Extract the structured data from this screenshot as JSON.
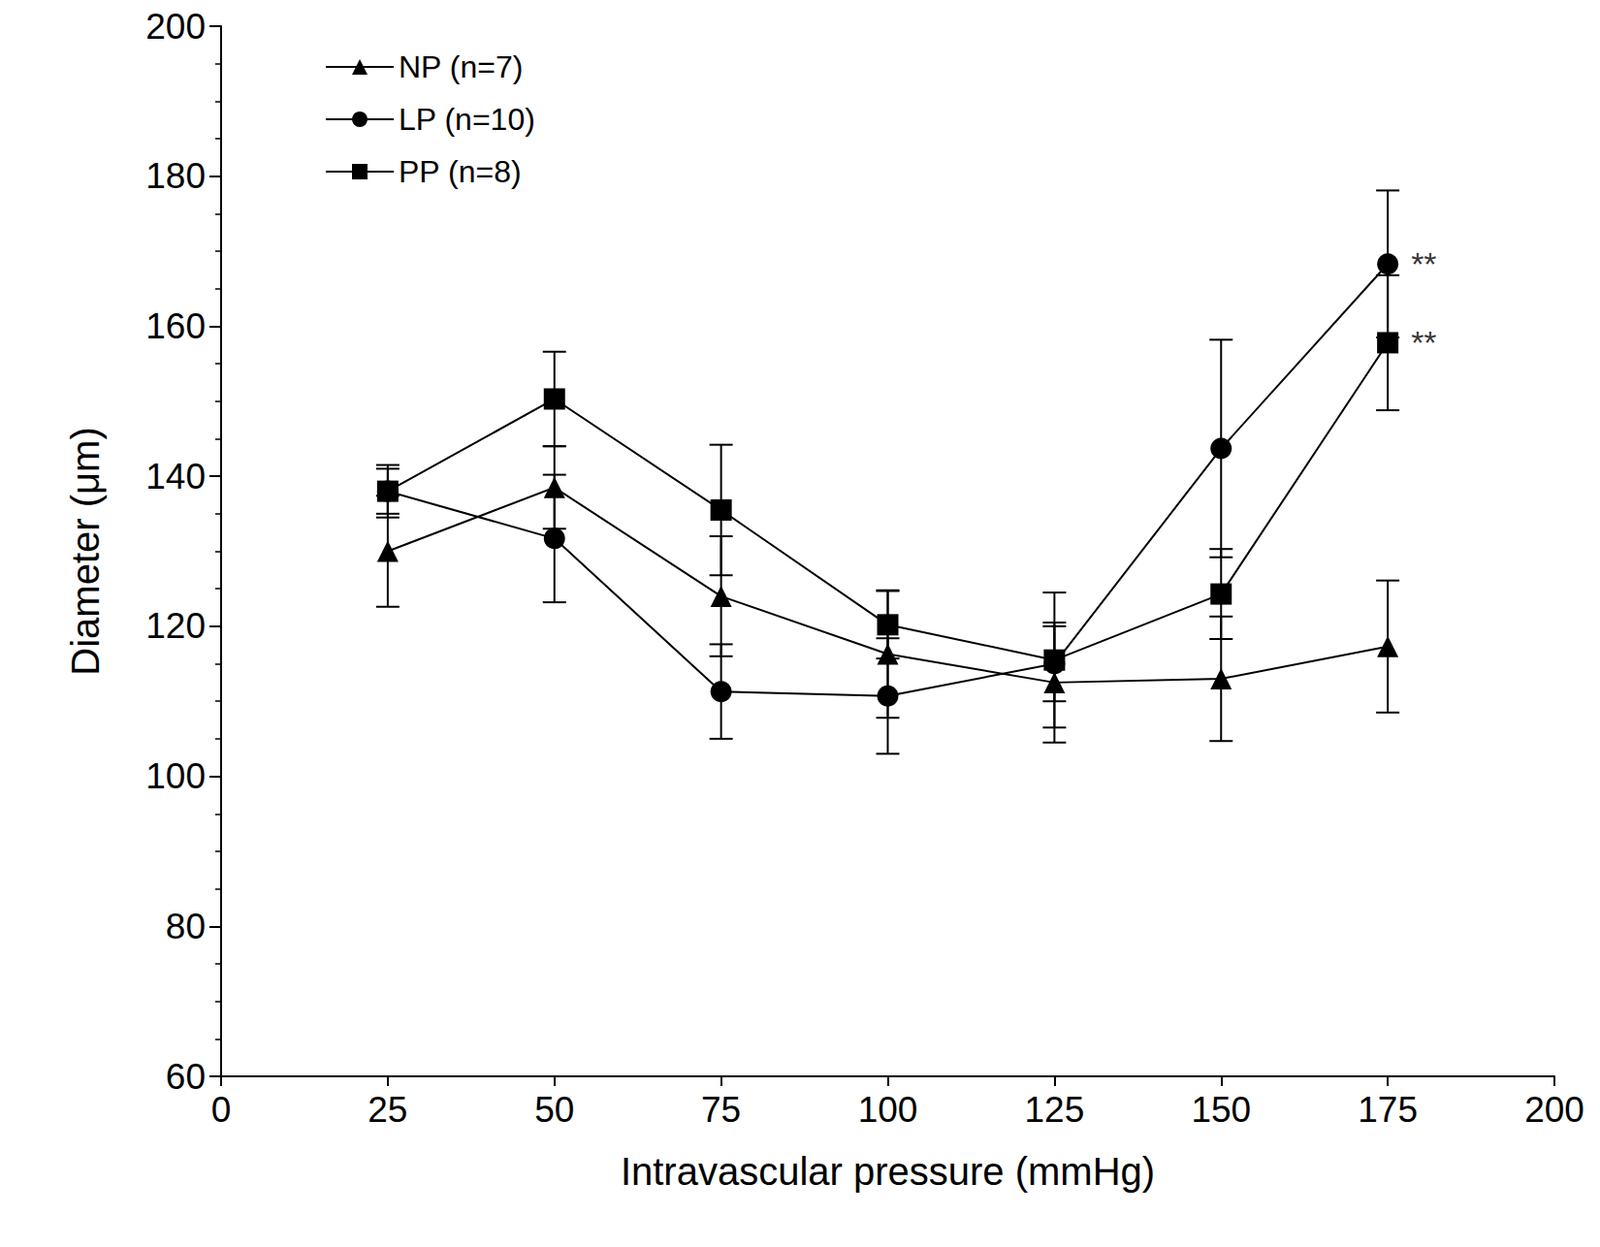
{
  "chart_data": {
    "type": "line",
    "x_label": "Intravascular pressure (mmHg)",
    "y_label": "Diameter (μm)",
    "xlim": [
      0,
      200
    ],
    "xticks": [
      0,
      25,
      50,
      75,
      100,
      125,
      150,
      175,
      200
    ],
    "ylim": [
      60,
      200
    ],
    "yticks": [
      60,
      80,
      100,
      120,
      140,
      160,
      180,
      200
    ],
    "grid": false,
    "legend": "upper left",
    "x": [
      25,
      50,
      75,
      100,
      125,
      150,
      175
    ],
    "series": [
      {
        "name": "NP (n=7)",
        "color": "#000000",
        "marker": "triangle",
        "line_style": "solid",
        "values": [
          130,
          138.5,
          124,
          116.3,
          112.5,
          113,
          117.3
        ],
        "errors": [
          7.4,
          5.5,
          8,
          8.5,
          8,
          8.3,
          8.8
        ]
      },
      {
        "name": "LP (n=10)",
        "color": "#000000",
        "marker": "circle",
        "line_style": "solid",
        "values": [
          138,
          131.7,
          111.3,
          110.7,
          115,
          143.7,
          168.3
        ],
        "errors": [
          3.5,
          8.5,
          6.3,
          7.7,
          5,
          14.5,
          9.8
        ]
      },
      {
        "name": "PP (n=8)",
        "color": "#000000",
        "marker": "square",
        "line_style": "solid",
        "values": [
          138,
          150.3,
          135.5,
          120.2,
          115.5,
          124.3,
          157.8
        ],
        "errors": [
          3,
          6.3,
          8.7,
          4.5,
          9,
          6,
          9
        ]
      }
    ],
    "annotations": [
      {
        "text": "**",
        "x": 175,
        "y": 168.3
      },
      {
        "text": "**",
        "x": 175,
        "y": 157.8
      }
    ]
  }
}
